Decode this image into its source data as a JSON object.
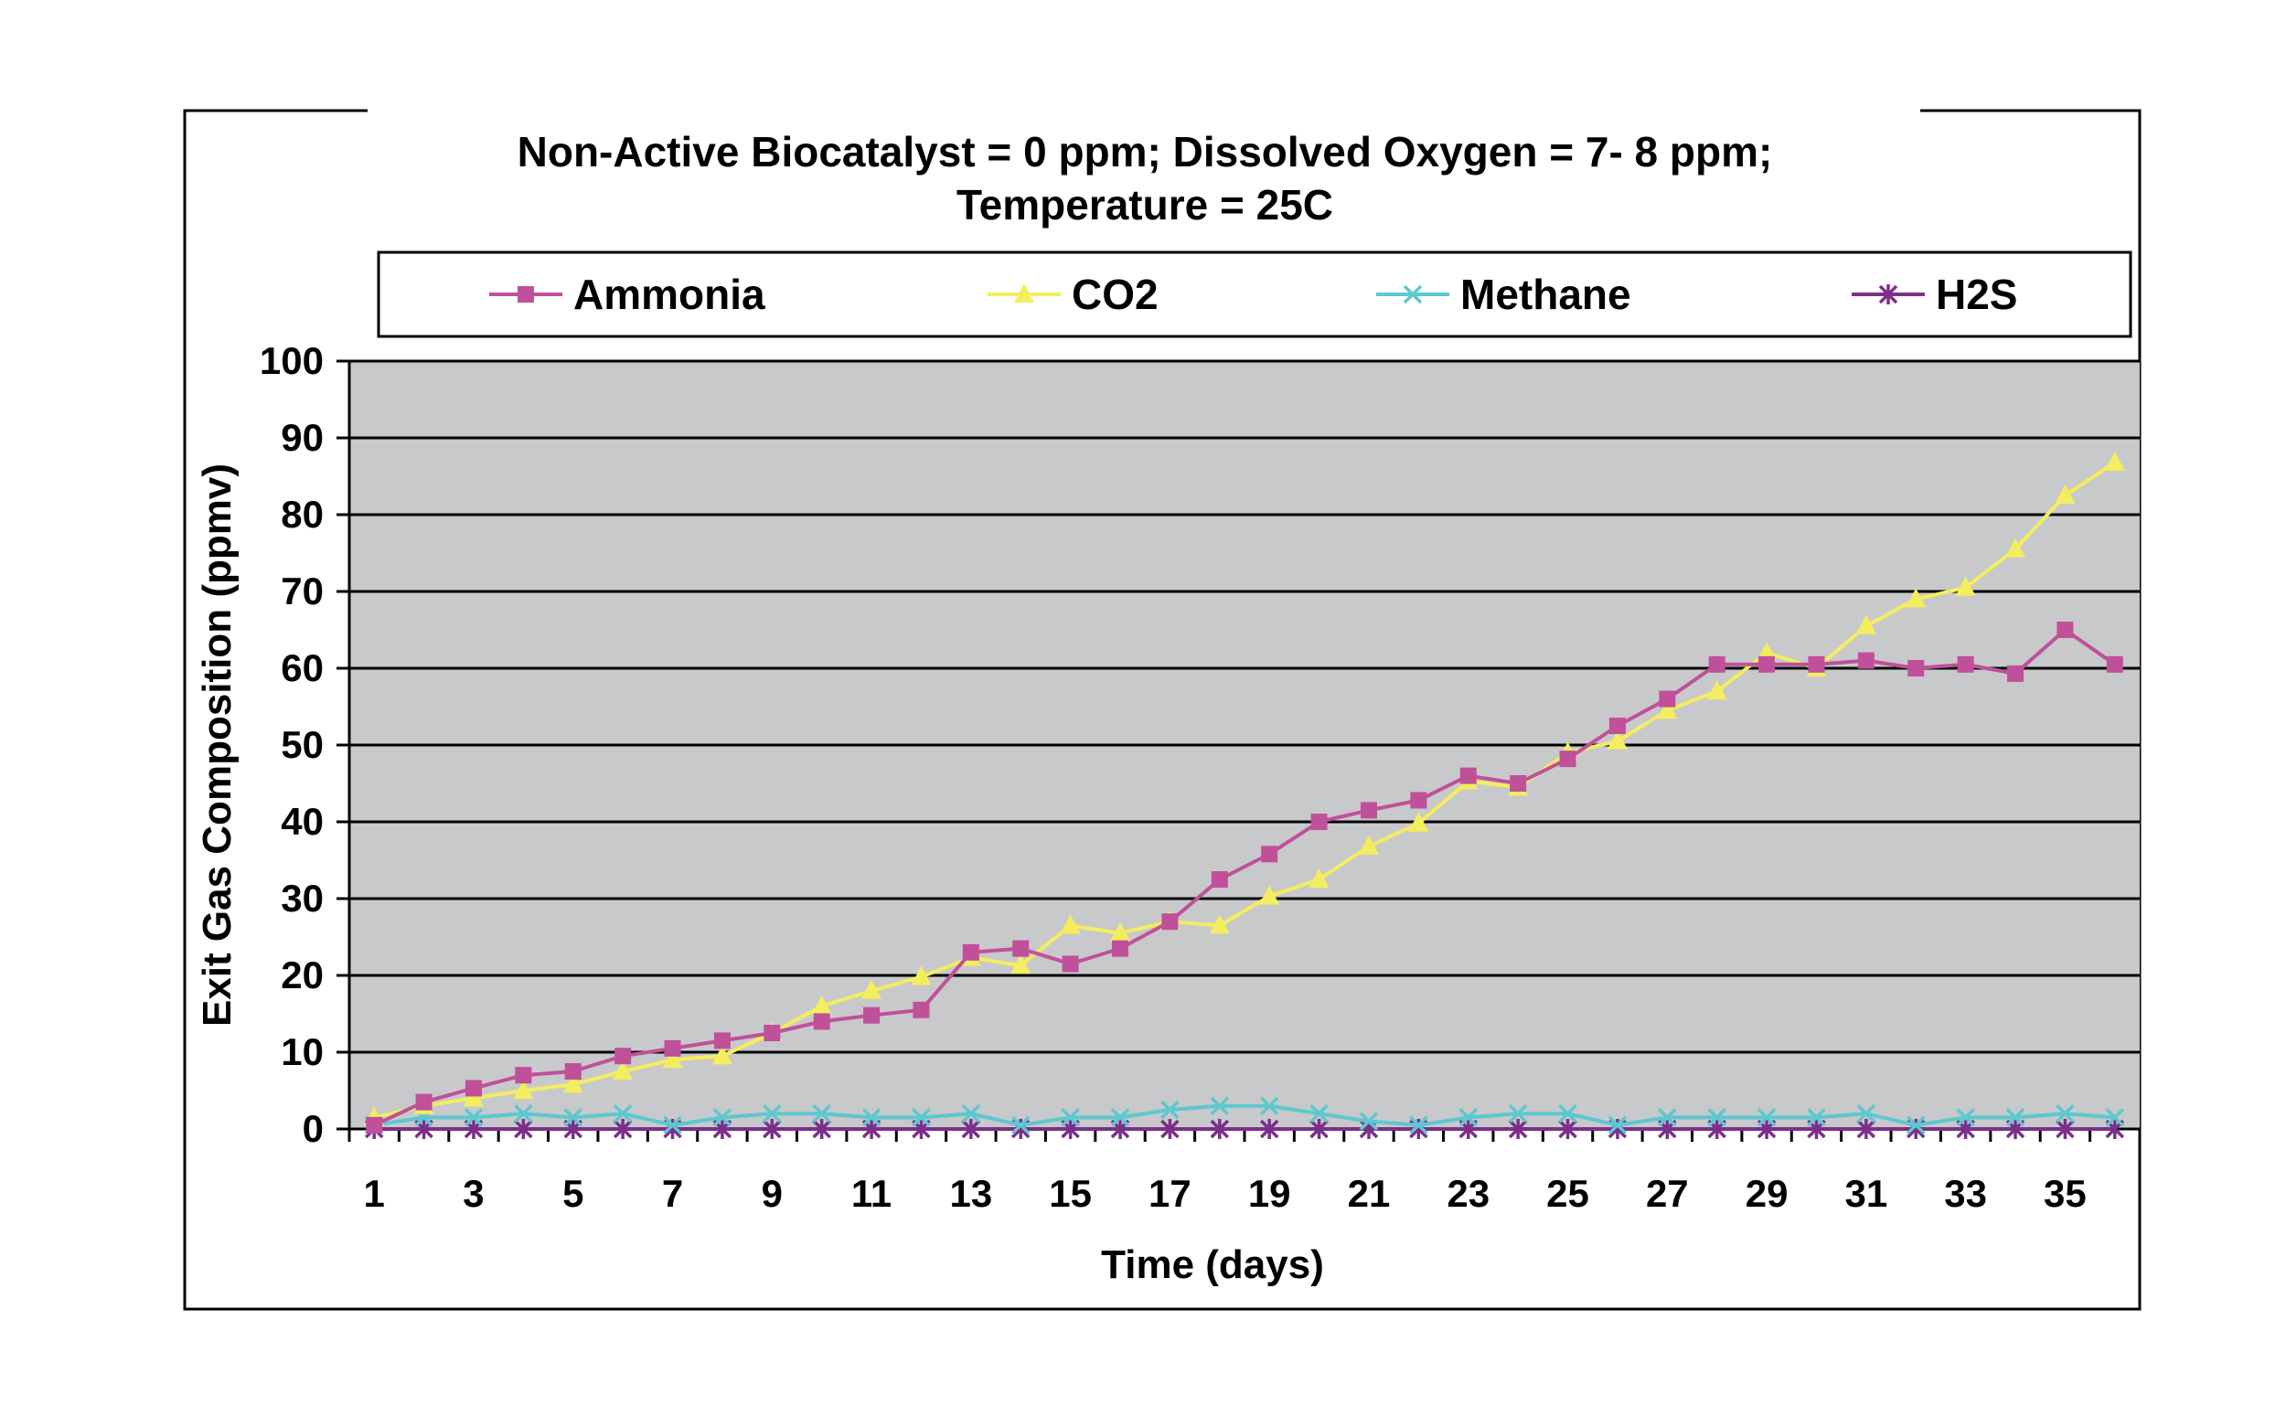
{
  "chart_data": {
    "type": "line",
    "title_lines": [
      "Non-Active Biocatalyst = 0 ppm; Dissolved Oxygen = 7- 8 ppm;",
      "Temperature = 25C"
    ],
    "xlabel": "Time (days)",
    "ylabel": "Exit Gas Composition (ppmv)",
    "ylim": [
      0,
      100
    ],
    "yticks": [
      0,
      10,
      20,
      30,
      40,
      50,
      60,
      70,
      80,
      90,
      100
    ],
    "xticks": [
      1,
      3,
      5,
      7,
      9,
      11,
      13,
      15,
      17,
      19,
      21,
      23,
      25,
      27,
      29,
      31,
      33,
      35
    ],
    "x": [
      1,
      2,
      3,
      4,
      5,
      6,
      7,
      8,
      9,
      10,
      11,
      12,
      13,
      14,
      15,
      16,
      17,
      18,
      19,
      20,
      21,
      22,
      23,
      24,
      25,
      26,
      27,
      28,
      29,
      30,
      31,
      32,
      33,
      34,
      35,
      36
    ],
    "grid": "horizontal",
    "plot_background": "#c8c9cb",
    "legend_position": "top",
    "series": [
      {
        "name": "Ammonia",
        "color": "#c0509a",
        "marker": "square",
        "values": [
          0.5,
          3.5,
          5.3,
          7.0,
          7.5,
          9.5,
          10.5,
          11.5,
          12.5,
          14.0,
          14.8,
          15.5,
          23.0,
          23.5,
          21.5,
          23.5,
          27.0,
          32.5,
          35.8,
          40.0,
          41.5,
          42.8,
          46.0,
          45.0,
          48.2,
          52.5,
          56.0,
          60.5,
          60.5,
          60.5,
          61.0,
          60.0,
          60.5,
          59.3,
          65.0,
          60.5
        ]
      },
      {
        "name": "CO2",
        "color": "#f4ee5e",
        "marker": "triangle",
        "values": [
          1.5,
          3.0,
          4.0,
          5.0,
          5.8,
          7.5,
          9.0,
          9.5,
          12.5,
          16.0,
          18.0,
          19.8,
          22.3,
          21.3,
          26.5,
          25.5,
          27.0,
          26.5,
          30.3,
          32.5,
          36.8,
          39.8,
          45.3,
          44.5,
          49.0,
          50.5,
          54.5,
          57.0,
          62.0,
          60.0,
          65.5,
          69.0,
          70.5,
          75.5,
          82.5,
          86.8
        ]
      },
      {
        "name": "Methane",
        "color": "#5cc8cf",
        "marker": "x",
        "values": [
          0.5,
          1.5,
          1.5,
          2.0,
          1.5,
          2.0,
          0.5,
          1.5,
          2.0,
          2.0,
          1.5,
          1.5,
          2.0,
          0.5,
          1.5,
          1.5,
          2.5,
          3.0,
          3.0,
          2.0,
          1.0,
          0.5,
          1.5,
          2.0,
          2.0,
          0.5,
          1.5,
          1.5,
          1.5,
          1.5,
          2.0,
          0.5,
          1.5,
          1.5,
          2.0,
          1.5
        ]
      },
      {
        "name": "H2S",
        "color": "#7b2f8a",
        "marker": "star",
        "values": [
          0,
          0,
          0,
          0,
          0,
          0,
          0,
          0,
          0,
          0,
          0,
          0,
          0,
          0,
          0,
          0,
          0,
          0,
          0,
          0,
          0,
          0,
          0,
          0,
          0,
          0,
          0,
          0,
          0,
          0,
          0,
          0,
          0,
          0,
          0,
          0
        ]
      }
    ]
  }
}
